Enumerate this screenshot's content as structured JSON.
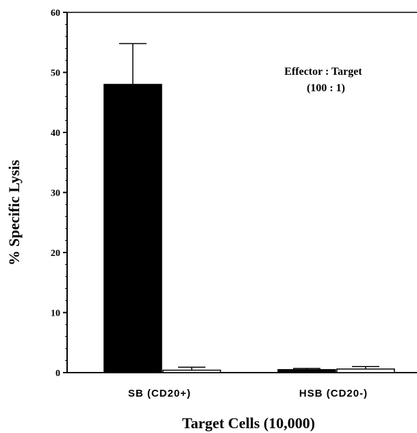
{
  "chart_data": {
    "type": "bar",
    "xlabel": "Target Cells (10,000)",
    "ylabel": "% Specific Lysis",
    "ylim": [
      0,
      60
    ],
    "yticks": [
      0,
      10,
      20,
      30,
      40,
      50,
      60
    ],
    "categories": [
      "SB (CD20+)",
      "HSB (CD20-)"
    ],
    "series": [
      {
        "fill": "#000000",
        "values": [
          48,
          0.5
        ],
        "errors": [
          6.8,
          0.2
        ]
      },
      {
        "fill": "#ffffff",
        "values": [
          0.4,
          0.6
        ],
        "errors": [
          0.5,
          0.4
        ]
      }
    ],
    "annotation": {
      "line1": "Effector : Target",
      "line2": "(100 : 1)"
    },
    "grid": false
  }
}
